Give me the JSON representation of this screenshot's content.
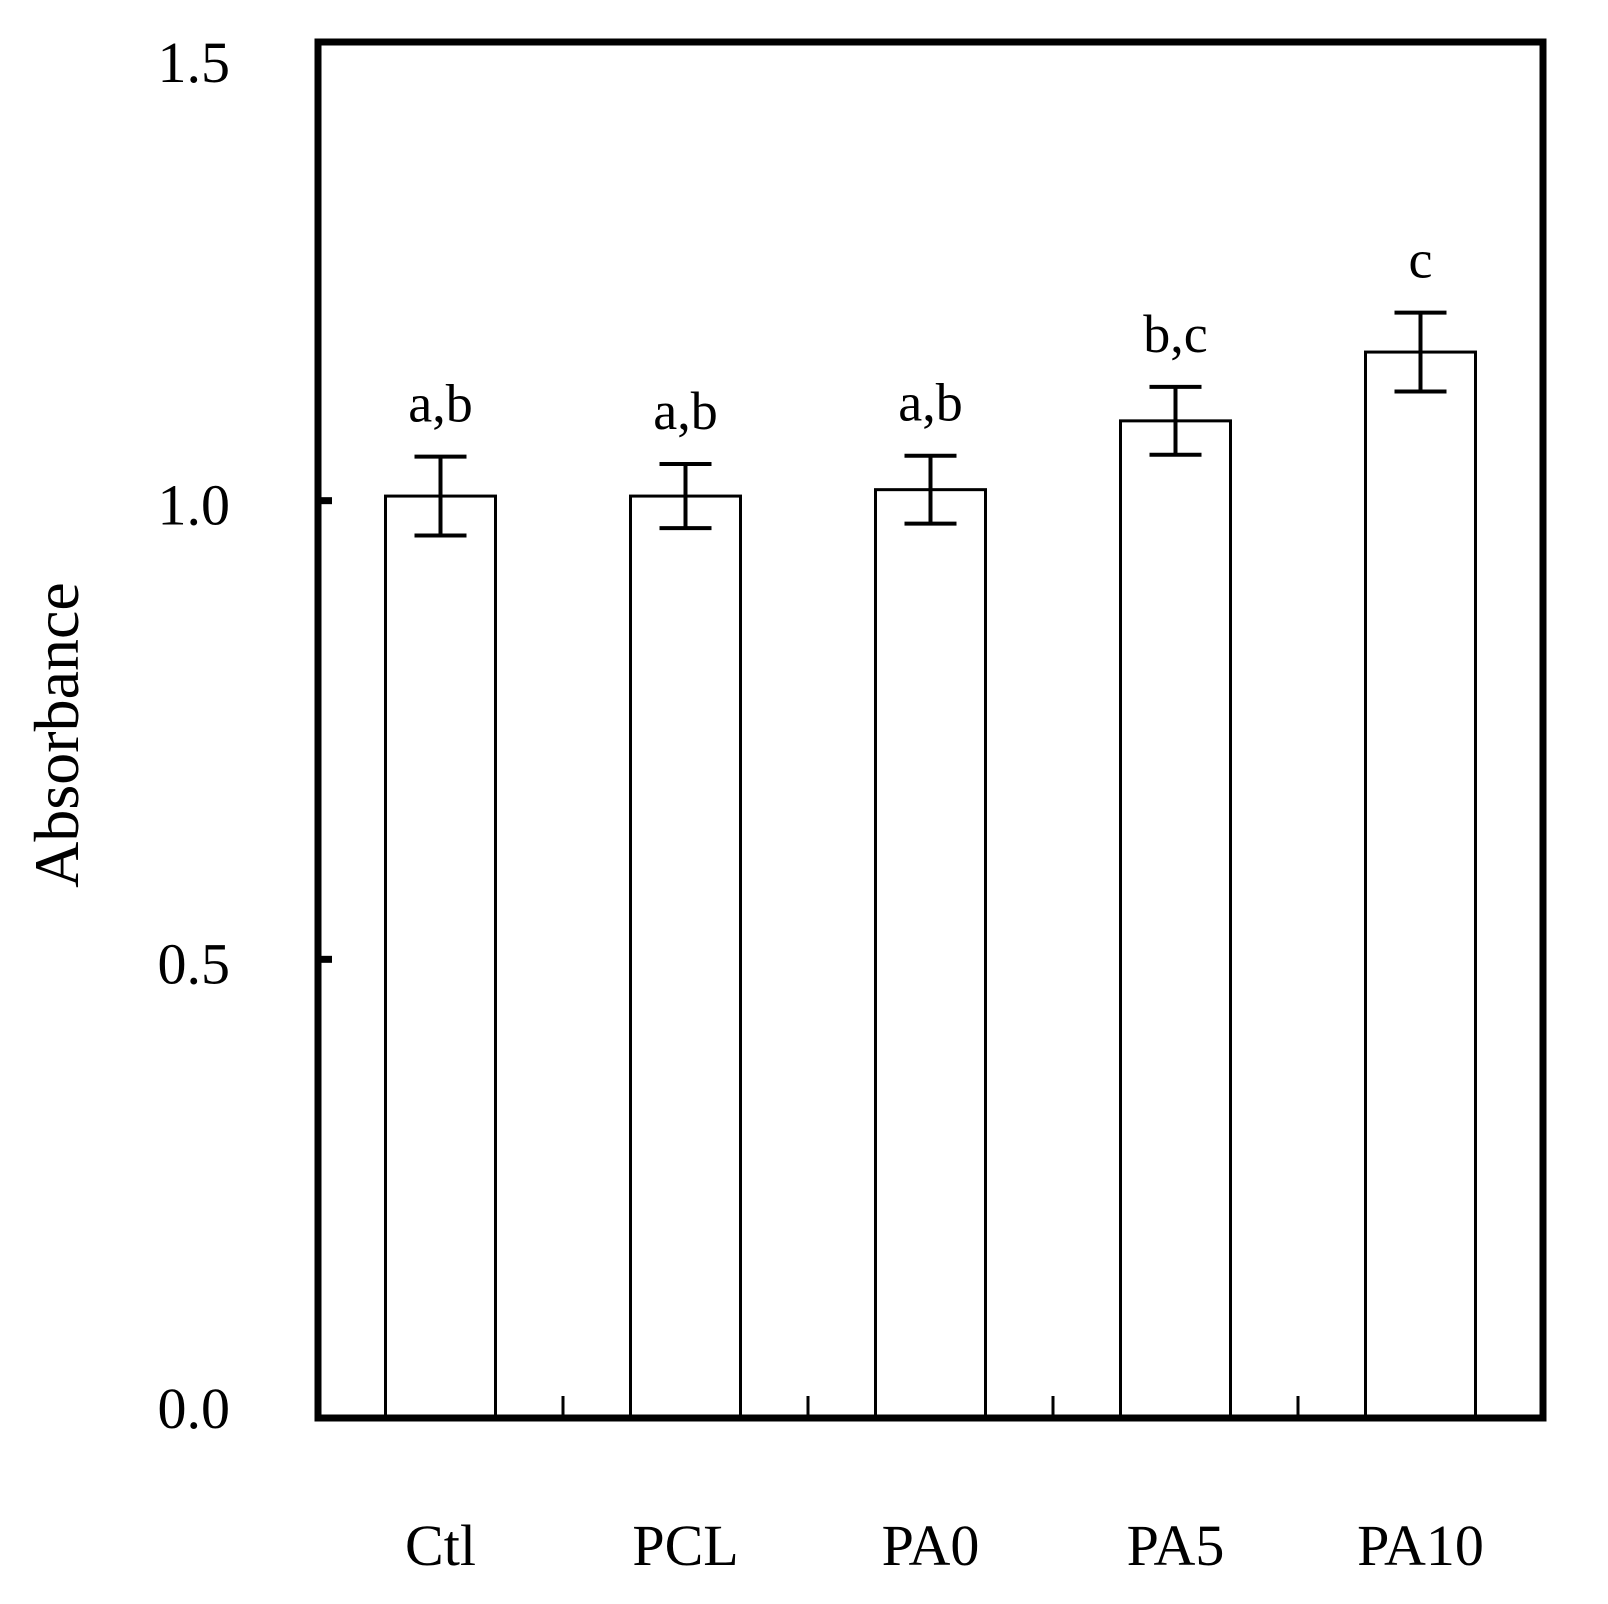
{
  "chart_data": {
    "type": "bar",
    "title": "",
    "xlabel": "",
    "ylabel": "Absorbance",
    "ylim": [
      0,
      1.5
    ],
    "yticks": [
      0.0,
      0.5,
      1.0,
      1.5
    ],
    "ytick_labels": [
      "0.0",
      "0.5",
      "1.0",
      "1.5"
    ],
    "categories": [
      "Ctl",
      "PCL",
      "PA0",
      "PA5",
      "PA10"
    ],
    "values": [
      1.005,
      1.005,
      1.012,
      1.087,
      1.162
    ],
    "errors": [
      0.043,
      0.035,
      0.037,
      0.037,
      0.043
    ],
    "significance_labels": [
      "a,b",
      "a,b",
      "a,b",
      "b,c",
      "c"
    ],
    "grid": false,
    "legend": "none",
    "bar_fill": "#ffffff",
    "bar_edge": "#000000"
  }
}
